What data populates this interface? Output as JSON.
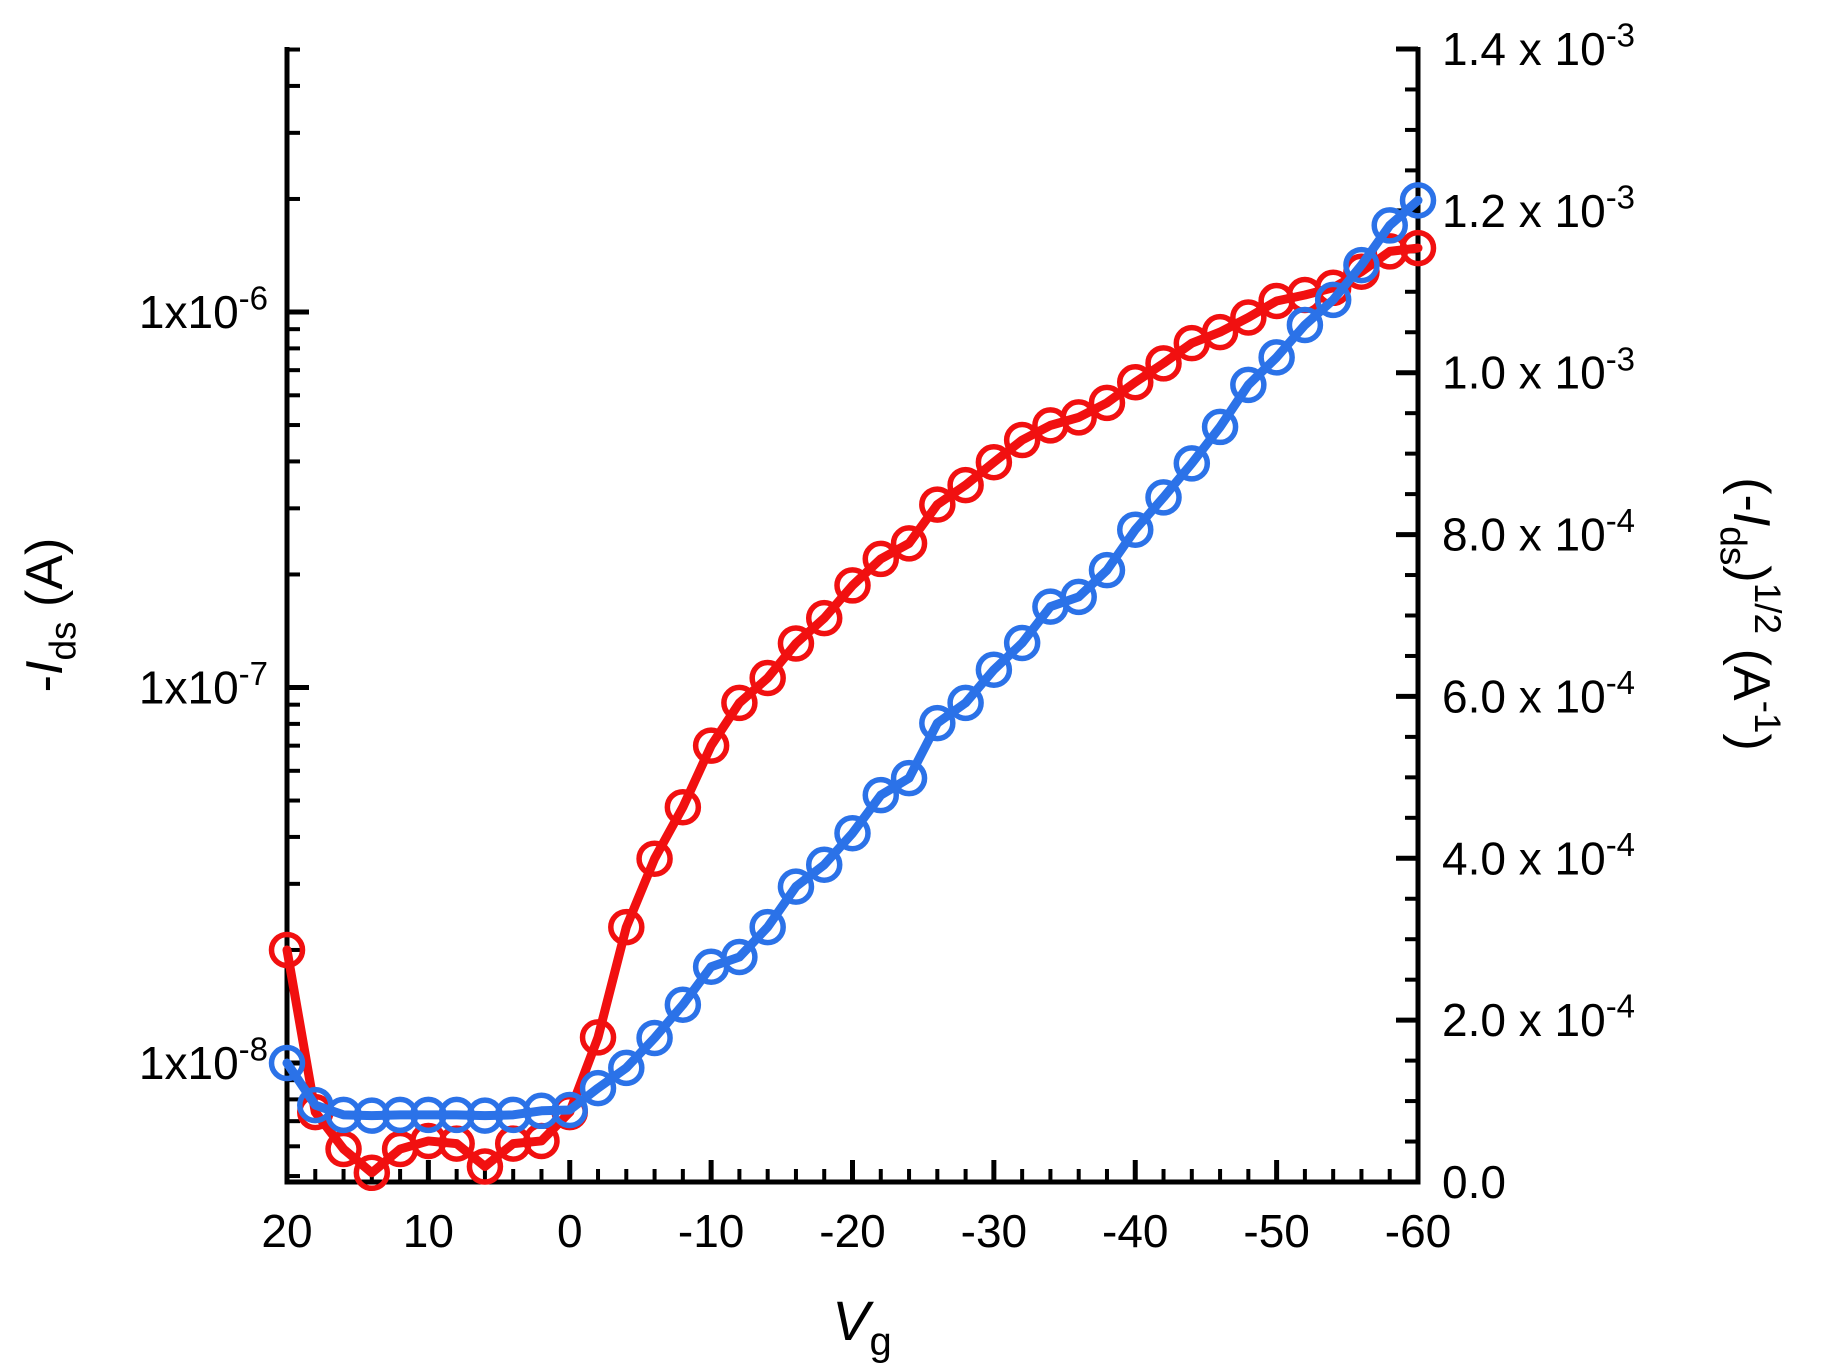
{
  "chart_data": {
    "type": "line",
    "title": "",
    "x_axis": {
      "title": [
        {
          "t": "V",
          "i": true
        },
        {
          "t": "g",
          "sub": true
        }
      ],
      "range": [
        20,
        -60
      ],
      "minor_step": 2,
      "ticks": [
        {
          "label": [
            {
              "t": "20"
            }
          ],
          "value": 20
        },
        {
          "label": [
            {
              "t": "10"
            }
          ],
          "value": 10
        },
        {
          "label": [
            {
              "t": "0"
            }
          ],
          "value": 0
        },
        {
          "label": [
            {
              "t": "-10"
            }
          ],
          "value": -10
        },
        {
          "label": [
            {
              "t": "-20"
            }
          ],
          "value": -20
        },
        {
          "label": [
            {
              "t": "-30"
            }
          ],
          "value": -30
        },
        {
          "label": [
            {
              "t": "-40"
            }
          ],
          "value": -40
        },
        {
          "label": [
            {
              "t": "-50"
            }
          ],
          "value": -50
        },
        {
          "label": [
            {
              "t": "-60"
            }
          ],
          "value": -60
        }
      ]
    },
    "left_axis": {
      "title": [
        {
          "t": "-"
        },
        {
          "t": "I",
          "i": true
        },
        {
          "t": "ds",
          "sub": true
        },
        {
          "t": " (A)"
        }
      ],
      "scale": "log",
      "range": [
        4.8e-09,
        5e-06
      ],
      "ticks": [
        {
          "label": [
            {
              "t": "1x10"
            },
            {
              "t": "-6",
              "sup": true
            }
          ],
          "value": 1e-06
        },
        {
          "label": [
            {
              "t": "1x10"
            },
            {
              "t": "-7",
              "sup": true
            }
          ],
          "value": 1e-07
        },
        {
          "label": [
            {
              "t": "1x10"
            },
            {
              "t": "-8",
              "sup": true
            }
          ],
          "value": 1e-08
        }
      ]
    },
    "right_axis": {
      "title": [
        {
          "t": "(-"
        },
        {
          "t": "I",
          "i": true
        },
        {
          "t": "ds",
          "sub": true
        },
        {
          "t": ")"
        },
        {
          "t": "1/2",
          "sup": true
        },
        {
          "t": " (A"
        },
        {
          "t": "-1",
          "sup": true
        },
        {
          "t": ")"
        }
      ],
      "scale": "linear",
      "range": [
        0,
        0.0014
      ],
      "minor_step": 5e-05,
      "ticks": [
        {
          "label": [
            {
              "t": "1.4 x 10"
            },
            {
              "t": "-3",
              "sup": true
            }
          ],
          "value": 0.0014
        },
        {
          "label": [
            {
              "t": "1.2 x 10"
            },
            {
              "t": "-3",
              "sup": true
            }
          ],
          "value": 0.0012
        },
        {
          "label": [
            {
              "t": "1.0 x 10"
            },
            {
              "t": "-3",
              "sup": true
            }
          ],
          "value": 0.001
        },
        {
          "label": [
            {
              "t": "8.0 x 10"
            },
            {
              "t": "-4",
              "sup": true
            }
          ],
          "value": 0.0008
        },
        {
          "label": [
            {
              "t": "6.0 x 10"
            },
            {
              "t": "-4",
              "sup": true
            }
          ],
          "value": 0.0006
        },
        {
          "label": [
            {
              "t": "4.0 x 10"
            },
            {
              "t": "-4",
              "sup": true
            }
          ],
          "value": 0.0004
        },
        {
          "label": [
            {
              "t": "2.0 x 10"
            },
            {
              "t": "-4",
              "sup": true
            }
          ],
          "value": 0.0002
        },
        {
          "label": [
            {
              "t": "0.0"
            }
          ],
          "value": 0
        }
      ]
    },
    "x": [
      20,
      18,
      16,
      14,
      12,
      10,
      8,
      6,
      4,
      2,
      0,
      -2,
      -4,
      -6,
      -8,
      -10,
      -12,
      -14,
      -16,
      -18,
      -20,
      -22,
      -24,
      -26,
      -28,
      -30,
      -32,
      -34,
      -36,
      -38,
      -40,
      -42,
      -44,
      -46,
      -48,
      -50,
      -52,
      -54,
      -56,
      -58,
      -60
    ],
    "series": [
      {
        "name": "drain_current_log",
        "axis": "left",
        "color": "#f11010",
        "marker": "open-circle",
        "values": [
          2e-08,
          7.4e-09,
          5.9e-09,
          5.1e-09,
          5.9e-09,
          6.2e-09,
          6.1e-09,
          5.3e-09,
          6.1e-09,
          6.2e-09,
          7.4e-09,
          1.17e-08,
          2.3e-08,
          3.5e-08,
          4.8e-08,
          7e-08,
          9.1e-08,
          1.06e-07,
          1.31e-07,
          1.53e-07,
          1.87e-07,
          2.2e-07,
          2.42e-07,
          3.07e-07,
          3.46e-07,
          3.98e-07,
          4.56e-07,
          4.99e-07,
          5.24e-07,
          5.73e-07,
          6.5e-07,
          7.3e-07,
          8.26e-07,
          8.84e-07,
          9.67e-07,
          1.07e-06,
          1.11e-06,
          1.16e-06,
          1.28e-06,
          1.45e-06,
          1.48e-06
        ]
      },
      {
        "name": "sqrt_drain_current",
        "axis": "right",
        "color": "#2b72e8",
        "marker": "open-circle",
        "values": [
          0.000147,
          9.5e-05,
          8.3e-05,
          8.2e-05,
          8.3e-05,
          8.3e-05,
          8.3e-05,
          8.2e-05,
          8.3e-05,
          8.8e-05,
          8.9e-05,
          0.000116,
          0.000141,
          0.000178,
          0.000219,
          0.000266,
          0.000278,
          0.000315,
          0.000365,
          0.000392,
          0.000431,
          0.000478,
          0.000499,
          0.000567,
          0.000592,
          0.000633,
          0.000666,
          0.000711,
          0.000723,
          0.000756,
          0.000806,
          0.000846,
          0.000888,
          0.000933,
          0.000985,
          0.001019,
          0.001059,
          0.00109,
          0.001133,
          0.001182,
          0.001213
        ]
      }
    ],
    "legend": "none",
    "grid": "off"
  }
}
